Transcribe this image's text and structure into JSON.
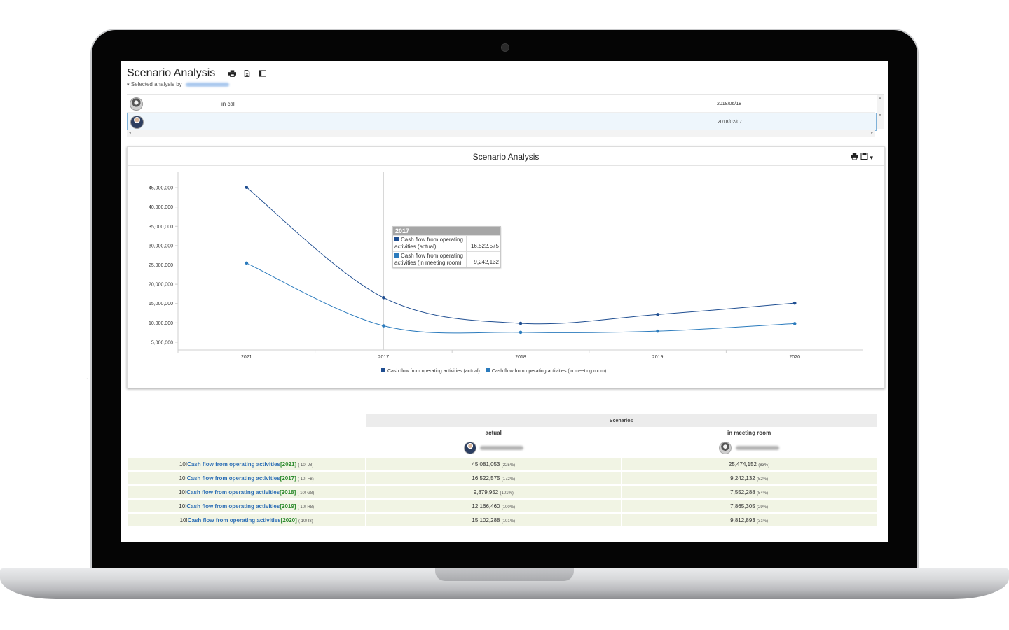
{
  "page": {
    "title": "Scenario Analysis",
    "subtitle_prefix": "Selected analysis by",
    "header_icons": [
      "printer-icon",
      "export-document-icon",
      "panel-toggle-icon"
    ]
  },
  "history": {
    "rows": [
      {
        "status": "in call",
        "date": "2018/06/18"
      },
      {
        "status": "",
        "date": "2018/02/07"
      }
    ]
  },
  "chart_panel": {
    "title": "Scenario Analysis",
    "tools": [
      "printer-icon",
      "save-icon",
      "dropdown-caret-icon"
    ]
  },
  "chart_data": {
    "type": "line",
    "title": "Scenario Analysis",
    "categories": [
      "2021",
      "2017",
      "2018",
      "2019",
      "2020"
    ],
    "series": [
      {
        "name": "Cash flow from operating activities (actual)",
        "color": "#1f4e91",
        "values": [
          45081053,
          16522575,
          9879952,
          12166460,
          15102288
        ]
      },
      {
        "name": "Cash flow from operating activities (in meeting room)",
        "color": "#2b7bbd",
        "values": [
          25474152,
          9242132,
          7552288,
          7865305,
          9812893
        ]
      }
    ],
    "yticks": [
      "45,000,000",
      "40,000,000",
      "35,000,000",
      "30,000,000",
      "25,000,000",
      "20,000,000",
      "15,000,000",
      "10,000,000",
      "5,000,000"
    ],
    "ylim": [
      3000000,
      49000000
    ],
    "grid": false,
    "legend": "bottom",
    "tooltip": {
      "title": "2017",
      "rows": [
        {
          "label": "Cash flow from operating activities (actual)",
          "value": "16,522,575",
          "color": "#1f4e91"
        },
        {
          "label": "Cash flow from operating activities (in meeting room)",
          "value": "9,242,132",
          "color": "#2b7bbd"
        }
      ]
    }
  },
  "table": {
    "group_header": "Scenarios",
    "scenarios": [
      "actual",
      "in meeting room"
    ],
    "rows": [
      {
        "prefix": "10!",
        "kpi": "Cash flow from operating activities",
        "year": "[2021]",
        "ref": "( 10! J8)",
        "actual": "45,081,053",
        "actual_pct": "(225%)",
        "meeting": "25,474,152",
        "meeting_pct": "(83%)"
      },
      {
        "prefix": "10!",
        "kpi": "Cash flow from operating activities",
        "year": "[2017]",
        "ref": "( 10! F8)",
        "actual": "16,522,575",
        "actual_pct": "(172%)",
        "meeting": "9,242,132",
        "meeting_pct": "(52%)"
      },
      {
        "prefix": "10!",
        "kpi": "Cash flow from operating activities",
        "year": "[2018]",
        "ref": "( 10! G8)",
        "actual": "9,879,952",
        "actual_pct": "(101%)",
        "meeting": "7,552,288",
        "meeting_pct": "(54%)"
      },
      {
        "prefix": "10!",
        "kpi": "Cash flow from operating activities",
        "year": "[2019]",
        "ref": "( 10! H8)",
        "actual": "12,166,460",
        "actual_pct": "(100%)",
        "meeting": "7,865,305",
        "meeting_pct": "(29%)"
      },
      {
        "prefix": "10!",
        "kpi": "Cash flow from operating activities",
        "year": "[2020]",
        "ref": "( 10! I8)",
        "actual": "15,102,288",
        "actual_pct": "(101%)",
        "meeting": "9,812,893",
        "meeting_pct": "(31%)"
      }
    ]
  }
}
